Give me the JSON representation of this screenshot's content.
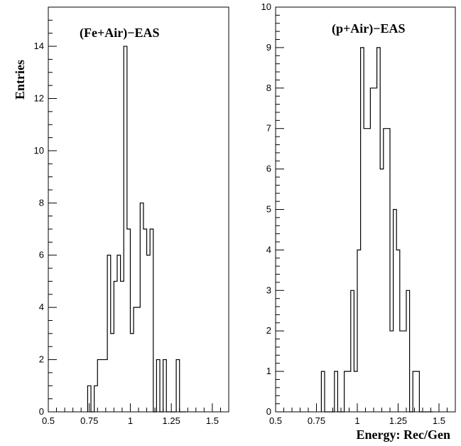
{
  "chart_data": [
    {
      "type": "histogram",
      "title": "(Fe+Air)−EAS",
      "ylabel": "Entries",
      "xlabel": "",
      "xlim": [
        0.5,
        1.6
      ],
      "ylim": [
        0,
        15.5
      ],
      "x_ticks": [
        0.5,
        0.75,
        1,
        1.25,
        1.5
      ],
      "x_tick_labels": [
        "0.5",
        "0.75",
        "1",
        "1.25",
        "1.5"
      ],
      "y_ticks": [
        0,
        2,
        4,
        6,
        8,
        10,
        12,
        14
      ],
      "y_tick_labels": [
        "0",
        "2",
        "4",
        "6",
        "8",
        "10",
        "12",
        "14"
      ],
      "bin_edges": [
        0.74,
        0.76,
        0.78,
        0.8,
        0.82,
        0.84,
        0.86,
        0.88,
        0.9,
        0.92,
        0.94,
        0.96,
        0.98,
        1.0,
        1.02,
        1.04,
        1.06,
        1.08,
        1.1,
        1.12,
        1.14,
        1.16,
        1.18,
        1.2,
        1.22,
        1.24,
        1.26,
        1.28,
        1.3,
        1.32,
        1.34
      ],
      "counts": [
        1,
        0,
        1,
        2,
        2,
        2,
        6,
        3,
        5,
        6,
        5,
        14,
        7,
        3,
        4,
        4,
        8,
        7,
        6,
        7,
        0,
        2,
        0,
        2,
        0,
        0,
        0,
        2,
        0,
        0
      ]
    },
    {
      "type": "histogram",
      "title": "(p+Air)−EAS",
      "ylabel": "",
      "xlabel": "Energy: Rec/Gen",
      "xlim": [
        0.5,
        1.6
      ],
      "ylim": [
        0,
        10
      ],
      "x_ticks": [
        0.5,
        0.75,
        1,
        1.25,
        1.5
      ],
      "x_tick_labels": [
        "0.5",
        "0.75",
        "1",
        "1.25",
        "1.5"
      ],
      "y_ticks": [
        0,
        1,
        2,
        3,
        4,
        5,
        6,
        7,
        8,
        9,
        10
      ],
      "y_tick_labels": [
        "0",
        "1",
        "2",
        "3",
        "4",
        "5",
        "6",
        "7",
        "8",
        "9",
        "10"
      ],
      "bin_edges": [
        0.78,
        0.8,
        0.82,
        0.84,
        0.86,
        0.88,
        0.9,
        0.92,
        0.94,
        0.96,
        0.98,
        1.0,
        1.02,
        1.04,
        1.06,
        1.08,
        1.1,
        1.12,
        1.14,
        1.16,
        1.18,
        1.2,
        1.22,
        1.24,
        1.26,
        1.28,
        1.3,
        1.32,
        1.34,
        1.36,
        1.38,
        1.4,
        1.42,
        1.44,
        1.46
      ],
      "counts": [
        1,
        0,
        0,
        0,
        1,
        0,
        0,
        1,
        1,
        3,
        1,
        4,
        9,
        7,
        7,
        8,
        8,
        9,
        6,
        7,
        7,
        2,
        5,
        4,
        2,
        2,
        3,
        0,
        1,
        1,
        0,
        0,
        0,
        0
      ]
    }
  ]
}
